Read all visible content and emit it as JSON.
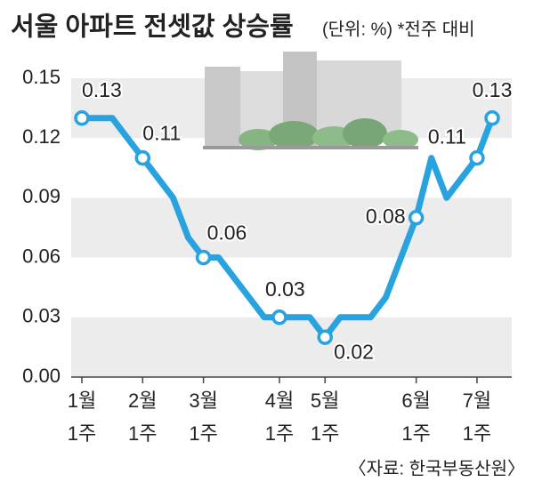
{
  "chart_data": {
    "type": "line",
    "title": "서울 아파트 전셋값 상승률",
    "subtitle": "(단위: %) *전주 대비",
    "source": "〈자료: 한국부동산원〉",
    "categories": [
      "1월\n1주",
      null,
      null,
      null,
      "2월\n1주",
      null,
      null,
      null,
      "3월\n1주",
      null,
      null,
      null,
      null,
      "4월\n1주",
      null,
      null,
      "5월\n1주",
      null,
      null,
      null,
      null,
      null,
      "6월\n1주",
      null,
      null,
      null,
      "7월\n1주",
      null
    ],
    "series": [
      {
        "name": "전셋값 상승률",
        "color": "#29a3e0",
        "values": [
          0.13,
          0.13,
          0.13,
          0.12,
          0.11,
          0.1,
          0.09,
          0.07,
          0.06,
          0.06,
          0.05,
          0.04,
          0.03,
          0.03,
          0.03,
          0.03,
          0.02,
          0.03,
          0.03,
          0.03,
          0.04,
          0.06,
          0.08,
          0.11,
          0.09,
          0.1,
          0.11,
          0.13
        ]
      }
    ],
    "labeled_points": [
      0,
      4,
      8,
      13,
      16,
      22,
      26,
      27
    ],
    "ylim": [
      0,
      0.15
    ],
    "yticks": [
      {
        "value": 0,
        "label": "0.00"
      },
      0.03,
      0.06,
      0.09,
      0.12,
      0.15
    ],
    "grid": true
  }
}
